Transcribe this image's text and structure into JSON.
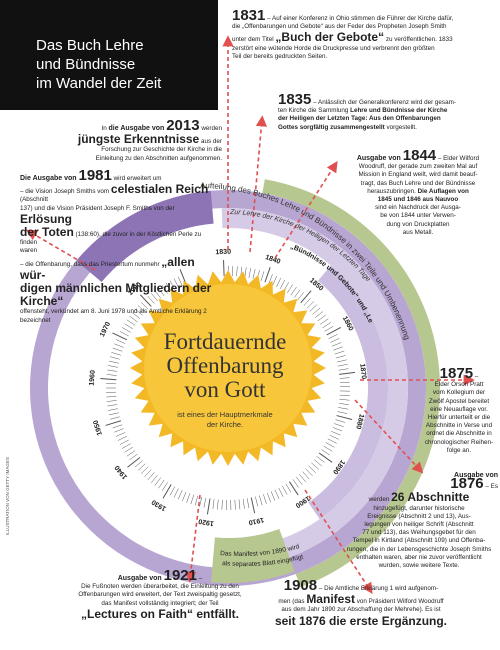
{
  "title": {
    "line1": "Das Buch Lehre",
    "line2": "und Bündnisse",
    "line3": "im Wandel der Zeit"
  },
  "center": {
    "title_l1": "Fortdauernde",
    "title_l2": "Offenbarung",
    "title_l3": "von Gott",
    "subtitle_l1": "ist eines der Hauptmerkmale",
    "subtitle_l2": "der Kirche."
  },
  "timeline": {
    "years": [
      "1830",
      "1840",
      "1850",
      "1860",
      "1870",
      "1880",
      "1890",
      "1900",
      "1910",
      "1920",
      "1930",
      "1940",
      "1950",
      "1960",
      "1970",
      "1980"
    ],
    "bands": {
      "outer": "Aufteilung des Buches Lehre und Bündnisse in zwei Teile und Umbenennung",
      "middle": "Zur Lehre der Kirche der Heiligen der Letzten Tage",
      "inner": "„Bündnisse und Gebote“ und „Lectures on Faith“",
      "lower_l1": "Das Manifest von 1890 wird",
      "lower_l2": "als separates Blatt eingefügt"
    },
    "colors": {
      "purple": "#b8a6d2",
      "purple_dark": "#8d74b5",
      "green": "#b7c790",
      "sun": "#f3b825",
      "arrow": "#e0504f"
    }
  },
  "notes": {
    "n1831": {
      "year": "1831",
      "l1": " – Auf einer Konferenz in Ohio stimmen die Führer der Kirche dafür,",
      "l2": "die „Offenbarungen und Gebote“ aus der Feder des Propheten Joseph Smith",
      "l3": "unter dem Titel ",
      "title": "„Buch der Gebote“",
      "l3b": " zu veröffentlichen. 1833",
      "l4": "zerstört eine wütende Horde die Druckpresse und verbrennt den größten",
      "l5": "Teil der bereits gedruckten Seiten."
    },
    "n1835": {
      "year": "1835",
      "l1": " – Anlässlich der Generalkonferenz wird der gesam-",
      "l2": "ten Kirche die Sammlung ",
      "b1": "Lehre und Bündnisse der Kirche",
      "b2": "der Heiligen der Letzten Tage: Aus den Offenbarungen",
      "b3": "Gottes sorgfältig zusammengestellt",
      "l3": " vorgestellt."
    },
    "n1844": {
      "pre": "Ausgabe von ",
      "year": "1844",
      "l1": " – Elder Wilford",
      "l2": "Woodruff, der gerade zum zweiten Mal auf",
      "l3": "Mission in England weilt, wird damit beauf-",
      "l4": "tragt, das Buch Lehre und der Bündnisse",
      "l5": "herauszubringen. ",
      "b1": "Die Auflagen von",
      "b2": "1845 und 1846 aus Nauvoo",
      "l6": "sind ein Nachdruck der Ausga-",
      "l7": "be von 1844 unter Verwen-",
      "l8": "dung von Druckplatten",
      "l9": "aus Metall."
    },
    "n2013": {
      "pre": "In ",
      "b1": "die Ausgabe von ",
      "year": "2013",
      "l1": " werden",
      "b2": "jüngste Erkenntnisse",
      "l2": " aus der",
      "l3": "Forschung zur Geschichte der Kirche in die",
      "l4": "Einleitung zu den Abschnitten aufgenommen."
    },
    "n1981": {
      "b1": "Die Ausgabe von ",
      "year": "1981",
      "l1": " wird erweitert um",
      "l2": "– die Vision Joseph Smiths vom ",
      "t1": "celestialen Reich",
      "l2b": " (Abschnitt",
      "l3": "137) und die Vision Präsident Joseph F. Smiths von der ",
      "t2": "Erlösung",
      "t3": "der Toten",
      "l4": " (138:60), die zuvor in der Köstlichen Perle zu finden",
      "l5": "waren",
      "l6": "– die Offenbarung, dass das Priestertum nunmehr ",
      "t4": "„allen wür-",
      "t5": "digen männlichen Mitgliedern der Kirche“",
      "l7": "offensteht, verkündet am 8. Juni 1978 und als Amtliche Erklärung 2",
      "l8": "bezeichnet"
    },
    "n1875": {
      "year": "1875",
      "l1": " –",
      "l2": "Elder Orson Pratt",
      "l3": "vom Kollegium der",
      "l4": "Zwölf Apostel bereitet",
      "l5": "eine Neuauflage vor.",
      "l6": "Hierfür unterteilt er die",
      "l7": "Abschnitte in Verse und",
      "l8": "ordnet die Abschnitte in",
      "l9": "chronologischer Reihen-",
      "l10": "folge an."
    },
    "n1876": {
      "pre": "Ausgabe von",
      "year": "1876",
      "l0": " – Es",
      "l1": "werden ",
      "b1": "26 Abschnitte",
      "l2": "hinzugefügt, darunter historische",
      "l3": "Ereignisse (Abschnitt 2 und 13), Aus-",
      "l4": "legungen von heiliger Schrift (Abschnitt",
      "l5": "77 und 113), das Weihungsgebet für den",
      "l6": "Tempel in Kirtland (Abschnitt 109) und Offenba-",
      "l7": "rungen, die in der Lebensgeschichte Joseph Smiths",
      "l8": "enthalten waren, aber nie zuvor veröffentlicht",
      "l9": "wurden, sowie weitere Texte."
    },
    "n1921": {
      "pre": "Ausgabe von ",
      "year": "1921",
      "l1": " –",
      "l2": "Die Fußnoten werden überarbeitet, die Einleitung zu den",
      "l3": "Offenbarungen wird erweitert, der Text zweispaltig gesetzt,",
      "l4": "das Manifest vollständig integriert; der Teil",
      "t1": "„Lectures on Faith“ entfällt."
    },
    "n1908": {
      "year": "1908",
      "l1": " – Die Amtliche Erklärung 1 wird aufgenom-",
      "l2": "men (das ",
      "t1": "Manifest",
      "l2b": " von Präsident Wilford Woodruff",
      "l3": "aus dem Jahr 1890 zur Abschaffung der Mehrehe). Es ist",
      "t2": "seit 1876 die erste Ergänzung."
    }
  },
  "credit": "ILLUSTRATION VON GETTY IMAGES"
}
